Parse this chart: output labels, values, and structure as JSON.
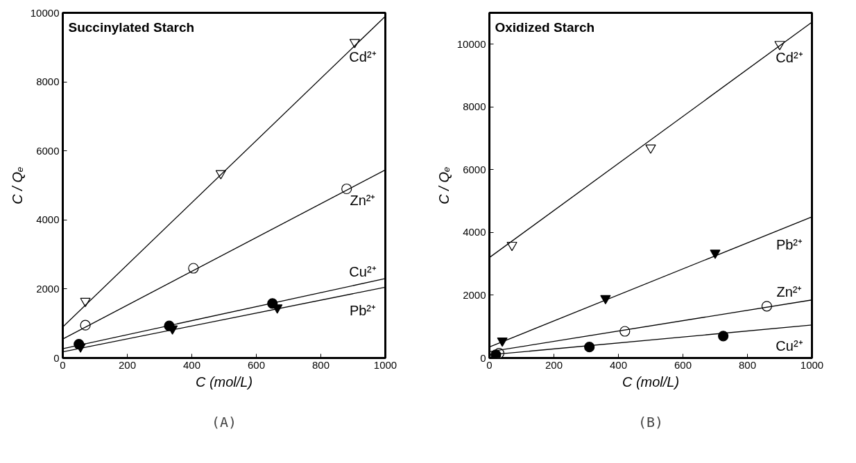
{
  "chart_data": [
    {
      "type": "scatter",
      "title": "Succinylated Starch",
      "xlabel": "C (mol/L)",
      "ylabel": "C / Qₑ",
      "xlim": [
        0,
        1000
      ],
      "ylim": [
        0,
        10000
      ],
      "xticks": [
        0,
        200,
        400,
        600,
        800,
        1000
      ],
      "yticks": [
        0,
        2000,
        4000,
        6000,
        8000,
        10000
      ],
      "grid": false,
      "annotations": [
        "(A)"
      ],
      "series": [
        {
          "color": "#ffffff",
          "marker": "triangle_down",
          "x": [
            70,
            490,
            905
          ],
          "values": [
            1650,
            5350,
            9150
          ]
        },
        {
          "type": "line",
          "name": "Cd²⁺",
          "color": "#000000",
          "x": [
            0,
            1000
          ],
          "values": [
            900,
            9900
          ]
        },
        {
          "color": "#ffffff",
          "marker": "circle",
          "x": [
            70,
            405,
            880
          ],
          "values": [
            950,
            2600,
            4900
          ]
        },
        {
          "type": "line",
          "name": "Zn²⁺",
          "color": "#000000",
          "x": [
            0,
            1000
          ],
          "values": [
            550,
            5450
          ]
        },
        {
          "color": "#000000",
          "marker": "circle",
          "x": [
            50,
            330,
            650
          ],
          "values": [
            400,
            930,
            1580
          ]
        },
        {
          "type": "line",
          "name": "Cu²⁺",
          "color": "#000000",
          "x": [
            0,
            1000
          ],
          "values": [
            270,
            2300
          ]
        },
        {
          "color": "#000000",
          "marker": "triangle_down",
          "x": [
            55,
            340,
            665
          ],
          "values": [
            330,
            850,
            1460
          ]
        },
        {
          "type": "line",
          "name": "Pb²⁺",
          "color": "#000000",
          "x": [
            0,
            1000
          ],
          "values": [
            180,
            2050
          ]
        }
      ]
    },
    {
      "type": "scatter",
      "title": "Oxidized Starch",
      "xlabel": "C (mol/L)",
      "ylabel": "C / Qₑ",
      "xlim": [
        0,
        1000
      ],
      "ylim": [
        0,
        11000
      ],
      "xticks": [
        0,
        200,
        400,
        600,
        800,
        1000
      ],
      "yticks": [
        0,
        2000,
        4000,
        6000,
        8000,
        10000
      ],
      "grid": false,
      "annotations": [
        "(B)"
      ],
      "series": [
        {
          "color": "#ffffff",
          "marker": "triangle_down",
          "x": [
            70,
            500,
            900
          ],
          "values": [
            3600,
            6700,
            10000
          ]
        },
        {
          "type": "line",
          "name": "Cd²⁺",
          "color": "#000000",
          "x": [
            0,
            1000
          ],
          "values": [
            3200,
            10700
          ]
        },
        {
          "color": "#000000",
          "marker": "triangle_down",
          "x": [
            40,
            360,
            700
          ],
          "values": [
            550,
            1900,
            3350
          ]
        },
        {
          "type": "line",
          "name": "Pb²⁺",
          "color": "#000000",
          "x": [
            0,
            1000
          ],
          "values": [
            350,
            4500
          ]
        },
        {
          "color": "#ffffff",
          "marker": "circle",
          "x": [
            30,
            420,
            860
          ],
          "values": [
            150,
            850,
            1650
          ]
        },
        {
          "type": "line",
          "name": "Zn²⁺",
          "color": "#000000",
          "x": [
            0,
            1000
          ],
          "values": [
            200,
            1850
          ]
        },
        {
          "color": "#000000",
          "marker": "circle",
          "x": [
            20,
            310,
            725
          ],
          "values": [
            100,
            350,
            700
          ]
        },
        {
          "type": "line",
          "name": "Cu²⁺",
          "color": "#000000",
          "x": [
            0,
            1000
          ],
          "values": [
            100,
            1050
          ]
        }
      ]
    }
  ]
}
